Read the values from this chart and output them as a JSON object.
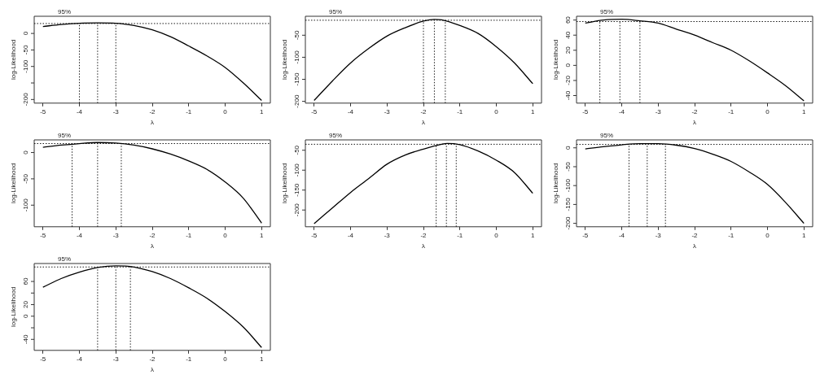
{
  "chart_data": [
    {
      "type": "line",
      "xlabel": "λ",
      "ylabel": "log-Likelihood",
      "xlim": [
        -5.24,
        1.24
      ],
      "xticks": [
        -5,
        -4,
        -3,
        -2,
        -1,
        0,
        1
      ],
      "ylim": [
        -211,
        52
      ],
      "yticks": [
        0,
        -50,
        -100,
        {
          "value": -150,
          "label": null
        },
        -200
      ],
      "marker": "none",
      "line_style": "solid",
      "annotations": [
        "95%"
      ],
      "series": [
        {
          "color": "#000000",
          "x": [
            -5,
            -4.5,
            -4,
            -3.5,
            -3,
            -2.5,
            -2,
            -1.5,
            -1,
            -0.5,
            0,
            0.5,
            1
          ],
          "values": [
            21,
            27,
            31,
            32,
            31,
            24,
            11,
            -10,
            -38,
            -68,
            -103,
            -150,
            -203
          ]
        }
      ],
      "ref_lines": [
        {
          "axis": "y",
          "value": 30,
          "line_style": "dotted"
        },
        {
          "axis": "x",
          "value": -4,
          "line_style": "dotted"
        },
        {
          "axis": "x",
          "value": -3.5,
          "line_style": "dotted"
        },
        {
          "axis": "x",
          "value": -3,
          "line_style": "dotted"
        }
      ]
    },
    {
      "type": "line",
      "xlabel": "λ",
      "ylabel": "log-Likelihood",
      "xlim": [
        -5.24,
        1.24
      ],
      "xticks": [
        -5,
        -4,
        -3,
        -2,
        -1,
        0,
        1
      ],
      "ylim": [
        -204,
        -7
      ],
      "yticks": [
        -50,
        -100,
        -150,
        -200
      ],
      "marker": "none",
      "line_style": "solid",
      "annotations": [
        "95%"
      ],
      "series": [
        {
          "color": "#000000",
          "x": [
            -5,
            -4.5,
            -4,
            -3.5,
            -3,
            -2.5,
            -2,
            -1.7,
            -1.5,
            -1,
            -0.5,
            0,
            0.5,
            1
          ],
          "values": [
            -198,
            -154,
            -113,
            -80,
            -52,
            -33,
            -18,
            -14,
            -15,
            -28,
            -46,
            -76,
            -113,
            -160
          ]
        }
      ],
      "ref_lines": [
        {
          "axis": "y",
          "value": -16,
          "line_style": "dotted"
        },
        {
          "axis": "x",
          "value": -2,
          "line_style": "dotted"
        },
        {
          "axis": "x",
          "value": -1.7,
          "line_style": "dotted"
        },
        {
          "axis": "x",
          "value": -1.4,
          "line_style": "dotted"
        }
      ]
    },
    {
      "type": "line",
      "xlabel": "λ",
      "ylabel": "log-Likelihood",
      "xlim": [
        -5.24,
        1.24
      ],
      "xticks": [
        -5,
        -4,
        -3,
        -2,
        -1,
        0,
        1
      ],
      "ylim": [
        -50,
        65
      ],
      "yticks": [
        60,
        40,
        20,
        0,
        -20,
        -40
      ],
      "marker": "none",
      "line_style": "solid",
      "annotations": [
        "95%"
      ],
      "series": [
        {
          "color": "#000000",
          "x": [
            -5,
            -4.5,
            -4,
            -3.5,
            -3,
            -2.5,
            -2,
            -1.5,
            -1,
            -0.5,
            0,
            0.5,
            1
          ],
          "values": [
            56,
            60,
            61,
            59,
            56,
            48,
            40,
            30,
            20,
            6,
            -10,
            -27,
            -47
          ]
        }
      ],
      "ref_lines": [
        {
          "axis": "y",
          "value": 58,
          "line_style": "dotted"
        },
        {
          "axis": "x",
          "value": -4.6,
          "line_style": "dotted"
        },
        {
          "axis": "x",
          "value": -4.05,
          "line_style": "dotted"
        },
        {
          "axis": "x",
          "value": -3.5,
          "line_style": "dotted"
        }
      ]
    },
    {
      "type": "line",
      "xlabel": "λ",
      "ylabel": "log-Likelihood",
      "xlim": [
        -5.24,
        1.24
      ],
      "xticks": [
        -5,
        -4,
        -3,
        -2,
        -1,
        0,
        1
      ],
      "ylim": [
        -141,
        24
      ],
      "yticks": [
        0,
        -50,
        -100
      ],
      "marker": "none",
      "line_style": "solid",
      "annotations": [
        "95%"
      ],
      "series": [
        {
          "color": "#000000",
          "x": [
            -5,
            -4.5,
            -4,
            -3.5,
            -3,
            -2.5,
            -2,
            -1.5,
            -1,
            -0.5,
            0,
            0.5,
            1
          ],
          "values": [
            10,
            14,
            17,
            19,
            18,
            14,
            7,
            -3,
            -16,
            -32,
            -56,
            -87,
            -134
          ]
        }
      ],
      "ref_lines": [
        {
          "axis": "y",
          "value": 17,
          "line_style": "dotted"
        },
        {
          "axis": "x",
          "value": -4.2,
          "line_style": "dotted"
        },
        {
          "axis": "x",
          "value": -3.5,
          "line_style": "dotted"
        },
        {
          "axis": "x",
          "value": -2.85,
          "line_style": "dotted"
        }
      ]
    },
    {
      "type": "line",
      "xlabel": "λ",
      "ylabel": "log-Likelihood",
      "xlim": [
        -5.24,
        1.24
      ],
      "xticks": [
        -5,
        -4,
        -3,
        -2,
        -1,
        0,
        1
      ],
      "ylim": [
        -242,
        -24
      ],
      "yticks": [
        -50,
        -100,
        -150,
        -200
      ],
      "marker": "none",
      "line_style": "solid",
      "annotations": [
        "95%"
      ],
      "series": [
        {
          "color": "#000000",
          "x": [
            -5,
            -4.5,
            -4,
            -3.5,
            -3,
            -2.5,
            -2,
            -1.5,
            -1.35,
            -1,
            -0.5,
            0,
            0.5,
            1
          ],
          "values": [
            -234,
            -195,
            -156,
            -121,
            -85,
            -62,
            -47,
            -35,
            -33,
            -36,
            -52,
            -75,
            -106,
            -158
          ]
        }
      ],
      "ref_lines": [
        {
          "axis": "y",
          "value": -35,
          "line_style": "dotted"
        },
        {
          "axis": "x",
          "value": -1.65,
          "line_style": "dotted"
        },
        {
          "axis": "x",
          "value": -1.37,
          "line_style": "dotted"
        },
        {
          "axis": "x",
          "value": -1.1,
          "line_style": "dotted"
        }
      ]
    },
    {
      "type": "line",
      "xlabel": "λ",
      "ylabel": "log-Likelihood",
      "xlim": [
        -5.24,
        1.24
      ],
      "xticks": [
        -5,
        -4,
        -3,
        -2,
        -1,
        0,
        1
      ],
      "ylim": [
        -209,
        21
      ],
      "yticks": [
        0,
        -50,
        -100,
        -150,
        -200
      ],
      "marker": "none",
      "line_style": "solid",
      "annotations": [
        "95%"
      ],
      "series": [
        {
          "color": "#000000",
          "x": [
            -5,
            -4.5,
            -4,
            -3.5,
            -3,
            -2.5,
            -2,
            -1.5,
            -1,
            -0.5,
            0,
            0.5,
            1
          ],
          "values": [
            -3,
            3,
            8,
            11,
            11,
            7,
            -2,
            -17,
            -36,
            -64,
            -97,
            -145,
            -200
          ]
        }
      ],
      "ref_lines": [
        {
          "axis": "y",
          "value": 9,
          "line_style": "dotted"
        },
        {
          "axis": "x",
          "value": -3.8,
          "line_style": "dotted"
        },
        {
          "axis": "x",
          "value": -3.3,
          "line_style": "dotted"
        },
        {
          "axis": "x",
          "value": -2.8,
          "line_style": "dotted"
        }
      ]
    },
    {
      "type": "line",
      "xlabel": "λ",
      "ylabel": "log-Likelihood",
      "xlim": [
        -5.24,
        1.24
      ],
      "xticks": [
        -5,
        -4,
        -3,
        -2,
        -1,
        0,
        1
      ],
      "ylim": [
        -59,
        91
      ],
      "yticks": [
        60,
        {
          "value": 40,
          "label": null
        },
        20,
        0,
        {
          "value": -20,
          "label": null
        },
        -40
      ],
      "marker": "none",
      "line_style": "solid",
      "annotations": [
        "95%"
      ],
      "series": [
        {
          "color": "#000000",
          "x": [
            -5,
            -4.5,
            -4,
            -3.5,
            -3,
            -2.5,
            -2,
            -1.5,
            -1,
            -0.5,
            0,
            0.5,
            1
          ],
          "values": [
            50,
            65,
            76,
            84,
            87,
            85,
            77,
            65,
            49,
            31,
            8,
            -19,
            -54
          ]
        }
      ],
      "ref_lines": [
        {
          "axis": "y",
          "value": 85,
          "line_style": "dotted"
        },
        {
          "axis": "x",
          "value": -3.5,
          "line_style": "dotted"
        },
        {
          "axis": "x",
          "value": -3,
          "line_style": "dotted"
        },
        {
          "axis": "x",
          "value": -2.6,
          "line_style": "dotted"
        }
      ]
    }
  ]
}
